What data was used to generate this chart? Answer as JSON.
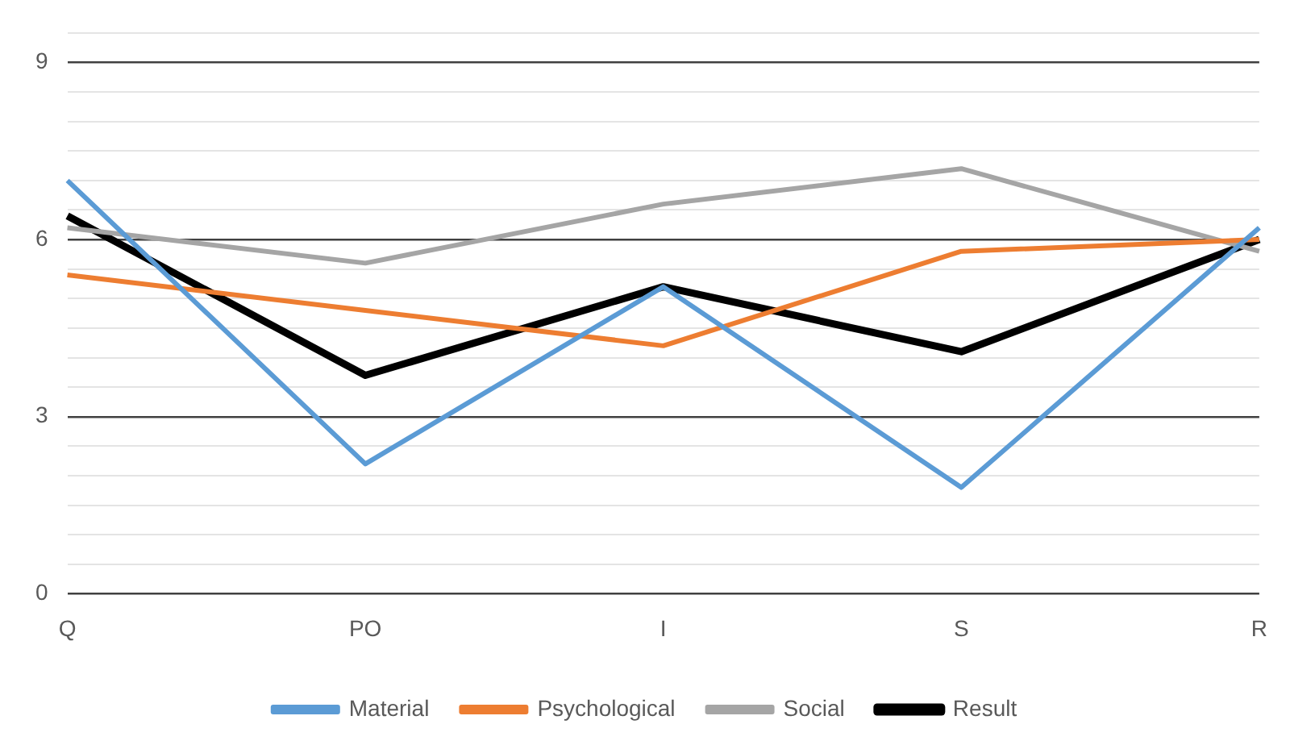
{
  "chart_data": {
    "type": "line",
    "categories": [
      "Q",
      "PO",
      "I",
      "S",
      "R"
    ],
    "series": [
      {
        "name": "Material",
        "color": "#5b9bd5",
        "values": [
          7.0,
          2.2,
          5.2,
          1.8,
          6.2
        ]
      },
      {
        "name": "Psychological",
        "color": "#ed7d31",
        "values": [
          5.4,
          4.8,
          4.2,
          5.8,
          6.0
        ]
      },
      {
        "name": "Social",
        "color": "#a5a5a5",
        "values": [
          6.2,
          5.6,
          6.6,
          7.2,
          5.8
        ]
      },
      {
        "name": "Result",
        "color": "#000000",
        "values": [
          6.4,
          3.7,
          5.2,
          4.1,
          6.0
        ]
      }
    ],
    "ylim": [
      0,
      9.5
    ],
    "yticks": [
      0,
      {
        "value": 0.5,
        "label": null
      },
      {
        "value": 1,
        "label": null
      },
      {
        "value": 1.5,
        "label": null
      },
      {
        "value": 2,
        "label": null
      },
      {
        "value": 2.5,
        "label": null
      },
      3,
      {
        "value": 3.5,
        "label": null
      },
      {
        "value": 4,
        "label": null
      },
      {
        "value": 4.5,
        "label": null
      },
      {
        "value": 5,
        "label": null
      },
      {
        "value": 5.5,
        "label": null
      },
      6,
      {
        "value": 6.5,
        "label": null
      },
      {
        "value": 7,
        "label": null
      },
      {
        "value": 7.5,
        "label": null
      },
      {
        "value": 8,
        "label": null
      },
      {
        "value": 8.5,
        "label": null
      },
      9,
      {
        "value": 9.5,
        "label": null
      }
    ],
    "grid": "y",
    "legend": "bottom",
    "marker": "none",
    "line_style": "solid"
  }
}
